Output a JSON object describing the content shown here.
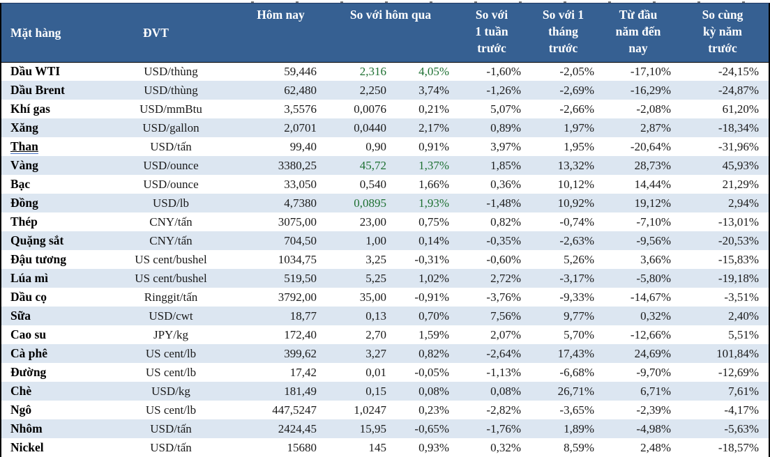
{
  "colors": {
    "header_bg": "#366092",
    "header_text": "#ffffff",
    "row_stripe": "#dce6f1",
    "positive_highlight_green": "#1e7032",
    "body_text": "#1a1a1a"
  },
  "chart_data": {
    "type": "table",
    "columns": [
      "Mặt hàng",
      "ĐVT",
      "Hôm nay",
      "So với hôm qua",
      "So với\n1 tuần\ntrước",
      "So với 1\ntháng\ntrước",
      "Từ đầu\nnăm đến\nnay",
      "So cùng\nkỳ năm\ntrước"
    ],
    "rows": [
      {
        "name": "Dầu WTI",
        "unit": "USD/thùng",
        "today": "59,446",
        "change": "2,316",
        "change_pct": "4,05%",
        "week_pct": "-1,60%",
        "month_pct": "-2,05%",
        "ytd_pct": "-17,10%",
        "yoy_pct": "-24,15%",
        "highlight": true,
        "underline": false
      },
      {
        "name": "Dầu Brent",
        "unit": "USD/thùng",
        "today": "62,480",
        "change": "2,250",
        "change_pct": "3,74%",
        "week_pct": "-1,26%",
        "month_pct": "-2,69%",
        "ytd_pct": "-16,29%",
        "yoy_pct": "-24,87%",
        "highlight": false,
        "underline": false
      },
      {
        "name": "Khí gas",
        "unit": "USD/mmBtu",
        "today": "3,5576",
        "change": "0,0076",
        "change_pct": "0,21%",
        "week_pct": "5,07%",
        "month_pct": "-2,66%",
        "ytd_pct": "-2,08%",
        "yoy_pct": "61,20%",
        "highlight": false,
        "underline": false
      },
      {
        "name": "Xăng",
        "unit": "USD/gallon",
        "today": "2,0701",
        "change": "0,0440",
        "change_pct": "2,17%",
        "week_pct": "0,89%",
        "month_pct": "1,97%",
        "ytd_pct": "2,87%",
        "yoy_pct": "-18,34%",
        "highlight": false,
        "underline": false
      },
      {
        "name": "Than",
        "unit": "USD/tấn",
        "today": "99,40",
        "change": "0,90",
        "change_pct": "0,91%",
        "week_pct": "3,97%",
        "month_pct": "1,95%",
        "ytd_pct": "-20,64%",
        "yoy_pct": "-31,96%",
        "highlight": false,
        "underline": true
      },
      {
        "name": "Vàng",
        "unit": "USD/ounce",
        "today": "3380,25",
        "change": "45,72",
        "change_pct": "1,37%",
        "week_pct": "1,85%",
        "month_pct": "13,32%",
        "ytd_pct": "28,73%",
        "yoy_pct": "45,93%",
        "highlight": true,
        "underline": false
      },
      {
        "name": "Bạc",
        "unit": "USD/ounce",
        "today": "33,050",
        "change": "0,540",
        "change_pct": "1,66%",
        "week_pct": "0,36%",
        "month_pct": "10,12%",
        "ytd_pct": "14,44%",
        "yoy_pct": "21,29%",
        "highlight": false,
        "underline": false
      },
      {
        "name": "Đồng",
        "unit": "USD/lb",
        "today": "4,7380",
        "change": "0,0895",
        "change_pct": "1,93%",
        "week_pct": "-1,48%",
        "month_pct": "10,92%",
        "ytd_pct": "19,12%",
        "yoy_pct": "2,94%",
        "highlight": true,
        "underline": false
      },
      {
        "name": "Thép",
        "unit": "CNY/tấn",
        "today": "3075,00",
        "change": "23,00",
        "change_pct": "0,75%",
        "week_pct": "0,82%",
        "month_pct": "-0,74%",
        "ytd_pct": "-7,10%",
        "yoy_pct": "-13,01%",
        "highlight": false,
        "underline": false
      },
      {
        "name": "Quặng sắt",
        "unit": "CNY/tấn",
        "today": "704,50",
        "change": "1,00",
        "change_pct": "0,14%",
        "week_pct": "-0,35%",
        "month_pct": "-2,63%",
        "ytd_pct": "-9,56%",
        "yoy_pct": "-20,53%",
        "highlight": false,
        "underline": false
      },
      {
        "name": "Đậu tương",
        "unit": "US cent/bushel",
        "today": "1034,75",
        "change": "3,25",
        "change_pct": "-0,31%",
        "week_pct": "-0,60%",
        "month_pct": "5,26%",
        "ytd_pct": "3,66%",
        "yoy_pct": "-15,83%",
        "highlight": false,
        "underline": false
      },
      {
        "name": "Lúa mì",
        "unit": "US cent/bushel",
        "today": "519,50",
        "change": "5,25",
        "change_pct": "1,02%",
        "week_pct": "2,72%",
        "month_pct": "-3,17%",
        "ytd_pct": "-5,80%",
        "yoy_pct": "-19,18%",
        "highlight": false,
        "underline": false
      },
      {
        "name": "Dầu cọ",
        "unit": "Ringgit/tấn",
        "today": "3792,00",
        "change": "35,00",
        "change_pct": "-0,91%",
        "week_pct": "-3,76%",
        "month_pct": "-9,33%",
        "ytd_pct": "-14,67%",
        "yoy_pct": "-3,51%",
        "highlight": false,
        "underline": false
      },
      {
        "name": "Sữa",
        "unit": "USD/cwt",
        "today": "18,77",
        "change": "0,13",
        "change_pct": "0,70%",
        "week_pct": "7,56%",
        "month_pct": "9,77%",
        "ytd_pct": "0,32%",
        "yoy_pct": "2,40%",
        "highlight": false,
        "underline": false
      },
      {
        "name": "Cao su",
        "unit": "JPY/kg",
        "today": "172,40",
        "change": "2,70",
        "change_pct": "1,59%",
        "week_pct": "2,07%",
        "month_pct": "5,70%",
        "ytd_pct": "-12,66%",
        "yoy_pct": "5,51%",
        "highlight": false,
        "underline": false
      },
      {
        "name": "Cà phê",
        "unit": "US cent/lb",
        "today": "399,62",
        "change": "3,27",
        "change_pct": "0,82%",
        "week_pct": "-2,64%",
        "month_pct": "17,43%",
        "ytd_pct": "24,69%",
        "yoy_pct": "101,84%",
        "highlight": false,
        "underline": false
      },
      {
        "name": "Đường",
        "unit": "US cent/lb",
        "today": "17,42",
        "change": "0,01",
        "change_pct": "-0,05%",
        "week_pct": "-1,13%",
        "month_pct": "-6,68%",
        "ytd_pct": "-9,70%",
        "yoy_pct": "-12,69%",
        "highlight": false,
        "underline": false
      },
      {
        "name": "Chè",
        "unit": "USD/kg",
        "today": "181,49",
        "change": "0,15",
        "change_pct": "0,08%",
        "week_pct": "0,08%",
        "month_pct": "26,71%",
        "ytd_pct": "6,71%",
        "yoy_pct": "7,61%",
        "highlight": false,
        "underline": false
      },
      {
        "name": "Ngô",
        "unit": "US cent/lb",
        "today": "447,5247",
        "change": "1,0247",
        "change_pct": "0,23%",
        "week_pct": "-2,82%",
        "month_pct": "-3,65%",
        "ytd_pct": "-2,39%",
        "yoy_pct": "-4,17%",
        "highlight": false,
        "underline": false
      },
      {
        "name": "Nhôm",
        "unit": "USD/tấn",
        "today": "2424,45",
        "change": "15,95",
        "change_pct": "-0,65%",
        "week_pct": "-1,76%",
        "month_pct": "1,89%",
        "ytd_pct": "-4,98%",
        "yoy_pct": "-5,63%",
        "highlight": false,
        "underline": false
      },
      {
        "name": "Nickel",
        "unit": "USD/tấn",
        "today": "15680",
        "change": "145",
        "change_pct": "0,93%",
        "week_pct": "0,32%",
        "month_pct": "8,59%",
        "ytd_pct": "2,48%",
        "yoy_pct": "-18,57%",
        "highlight": false,
        "underline": false
      }
    ]
  }
}
